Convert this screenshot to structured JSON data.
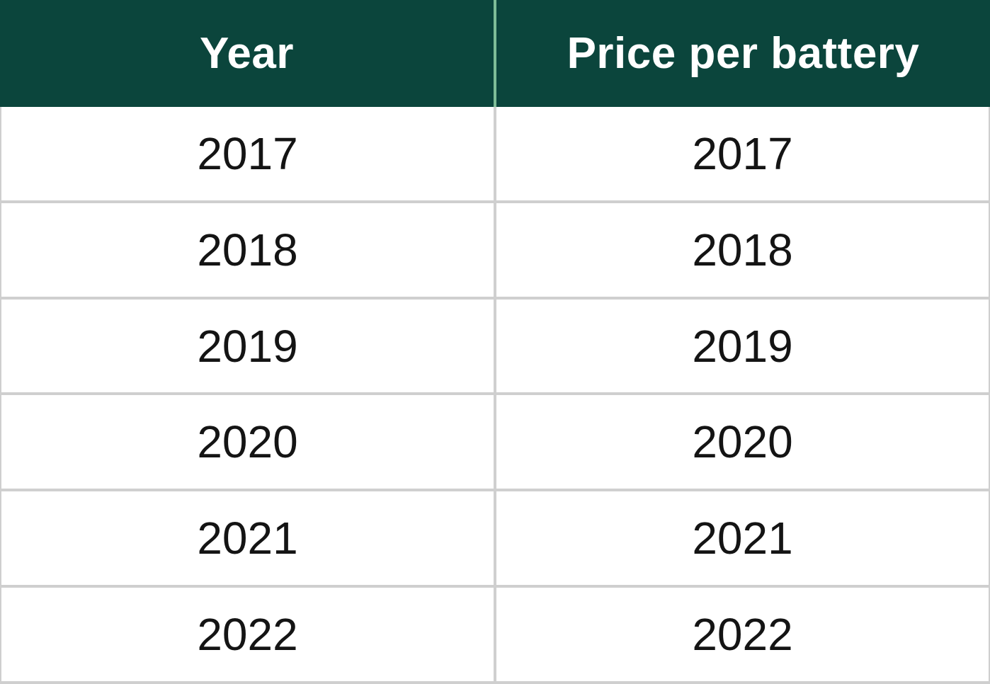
{
  "table": {
    "columns": [
      {
        "key": "year",
        "label": "Year"
      },
      {
        "key": "price",
        "label": "Price per battery"
      }
    ],
    "rows": [
      {
        "year": "2017",
        "price": "2017"
      },
      {
        "year": "2018",
        "price": "2018"
      },
      {
        "year": "2019",
        "price": "2019"
      },
      {
        "year": "2020",
        "price": "2020"
      },
      {
        "year": "2021",
        "price": "2021"
      },
      {
        "year": "2022",
        "price": "2022"
      }
    ]
  },
  "colors": {
    "header_bg": "#0B453C",
    "header_divider": "#7EBD97",
    "header_text": "#FFFFFF",
    "grid": "#CFCFCF",
    "cell_bg": "#FFFFFF",
    "cell_text": "#141414"
  },
  "chart_data": {
    "type": "table",
    "title": "",
    "columns": [
      "Year",
      "Price per battery"
    ],
    "rows": [
      [
        "2017",
        "2017"
      ],
      [
        "2018",
        "2018"
      ],
      [
        "2019",
        "2019"
      ],
      [
        "2020",
        "2020"
      ],
      [
        "2021",
        "2021"
      ],
      [
        "2022",
        "2022"
      ]
    ]
  }
}
